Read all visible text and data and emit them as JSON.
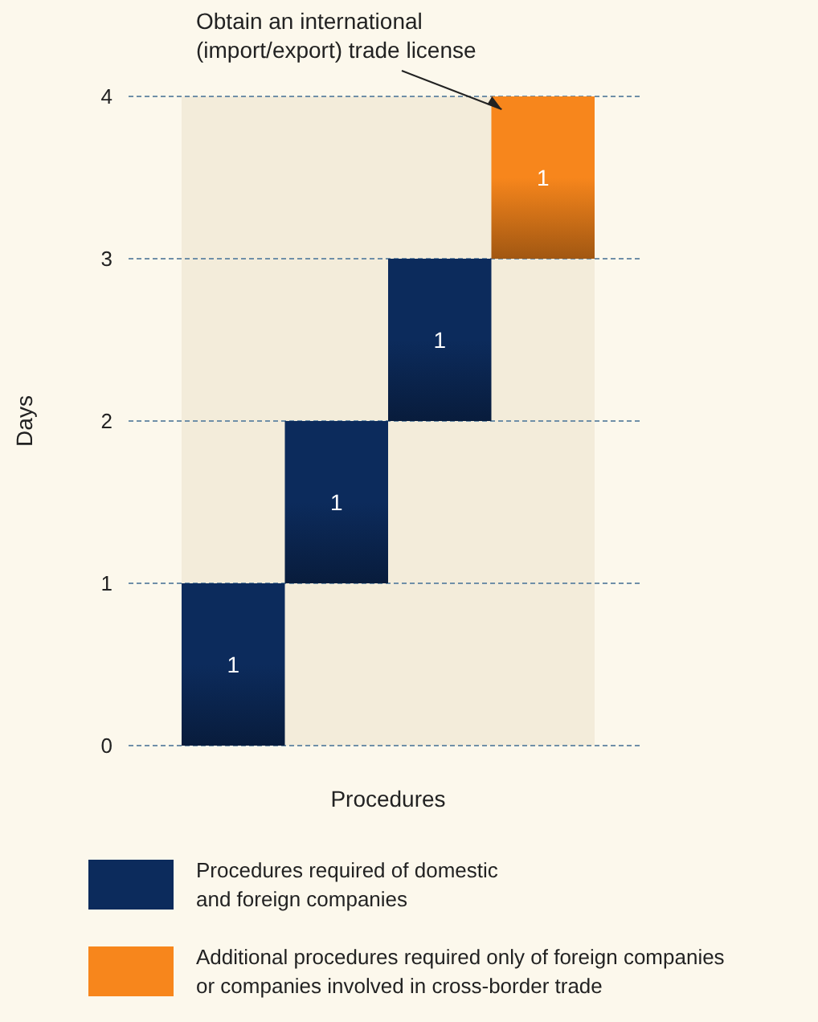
{
  "chart_data": {
    "type": "bar",
    "xlabel": "Procedures",
    "ylabel": "Days",
    "categories": [
      null,
      null,
      null,
      null
    ],
    "series": [
      {
        "name": "Procedures required of domestic and foreign companies",
        "color": "#0c2b5c",
        "values": [
          1,
          1,
          1,
          null
        ],
        "base": [
          0,
          1,
          2,
          null
        ]
      },
      {
        "name": "Additional procedures required only of foreign companies or companies involved in cross-border trade",
        "color": "#f7861c",
        "values": [
          null,
          null,
          null,
          1
        ],
        "base": [
          null,
          null,
          null,
          3
        ]
      }
    ],
    "ylim": [
      0,
      4
    ],
    "yticks": [
      0,
      1,
      2,
      3,
      4
    ],
    "grid": "y",
    "legend": "bottom",
    "data_labels": true,
    "annotations": [
      "Obtain an international\n(import/export) trade license"
    ]
  }
}
